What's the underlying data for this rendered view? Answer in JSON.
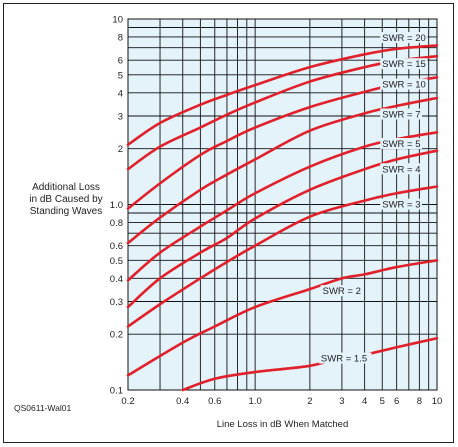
{
  "chart_data": {
    "type": "line",
    "xlabel": "Line Loss in dB When Matched",
    "ylabel_lines": [
      "Additional Loss",
      "in dB Caused by",
      "Standing Waves"
    ],
    "x_scale": "log",
    "y_scale": "log",
    "xlim": [
      0.2,
      10
    ],
    "ylim": [
      0.1,
      10
    ],
    "x_ticks": [
      0.2,
      0.4,
      0.6,
      1.0,
      2,
      3,
      4,
      5,
      6,
      8,
      10
    ],
    "x_tick_labels": [
      "0.2",
      "0.4",
      "0.6",
      "1.0",
      "2",
      "3",
      "4",
      "5",
      "6",
      "8",
      "10"
    ],
    "y_ticks": [
      0.1,
      0.2,
      0.3,
      0.4,
      0.5,
      0.6,
      0.8,
      1.0,
      2,
      3,
      4,
      5,
      6,
      8,
      10
    ],
    "y_tick_labels": [
      "0.1",
      "0.2",
      "0.3",
      "0.4",
      "0.5",
      "0.6",
      "0.8",
      "1.0",
      "2",
      "3",
      "4",
      "5",
      "6",
      "8",
      "10"
    ],
    "x_grid": [
      0.2,
      0.3,
      0.4,
      0.5,
      0.6,
      0.7,
      0.8,
      0.9,
      1.0,
      2,
      3,
      4,
      5,
      6,
      7,
      8,
      9,
      10
    ],
    "y_grid": [
      0.1,
      0.2,
      0.3,
      0.4,
      0.5,
      0.6,
      0.7,
      0.8,
      0.9,
      1.0,
      2,
      3,
      4,
      5,
      6,
      7,
      8,
      9,
      10
    ],
    "grid": true,
    "series": [
      {
        "name": "SWR = 20",
        "x": [
          0.2,
          0.3,
          0.5,
          0.7,
          1.0,
          2,
          4,
          6,
          10
        ],
        "y": [
          2.1,
          2.75,
          3.45,
          3.9,
          4.4,
          5.5,
          6.45,
          6.9,
          7.2
        ]
      },
      {
        "name": "SWR = 15",
        "x": [
          0.2,
          0.3,
          0.5,
          0.7,
          1.0,
          2,
          4,
          6,
          10
        ],
        "y": [
          1.55,
          2.05,
          2.6,
          3.05,
          3.55,
          4.6,
          5.5,
          5.95,
          6.3
        ]
      },
      {
        "name": "SWR = 10",
        "x": [
          0.2,
          0.3,
          0.5,
          0.7,
          1.0,
          2,
          4,
          6,
          10
        ],
        "y": [
          0.95,
          1.3,
          1.85,
          2.2,
          2.6,
          3.35,
          4.05,
          4.45,
          4.85
        ]
      },
      {
        "name": "SWR = 7",
        "x": [
          0.2,
          0.3,
          0.5,
          0.7,
          1.0,
          2,
          4,
          6,
          10
        ],
        "y": [
          0.62,
          0.85,
          1.2,
          1.45,
          1.75,
          2.5,
          3.1,
          3.4,
          3.75
        ]
      },
      {
        "name": "SWR = 5",
        "x": [
          0.2,
          0.3,
          0.5,
          0.7,
          1.0,
          2,
          4,
          6,
          10
        ],
        "y": [
          0.39,
          0.55,
          0.76,
          0.93,
          1.15,
          1.6,
          2.05,
          2.25,
          2.45
        ]
      },
      {
        "name": "SWR = 4",
        "x": [
          0.2,
          0.3,
          0.5,
          0.7,
          1.0,
          2,
          4,
          6,
          10
        ],
        "y": [
          0.28,
          0.4,
          0.55,
          0.66,
          0.84,
          1.2,
          1.55,
          1.75,
          1.95
        ]
      },
      {
        "name": "SWR = 3",
        "x": [
          0.2,
          0.3,
          0.5,
          0.7,
          1.0,
          2,
          4,
          6,
          10
        ],
        "y": [
          0.22,
          0.29,
          0.4,
          0.49,
          0.6,
          0.86,
          1.05,
          1.15,
          1.25
        ]
      },
      {
        "name": "SWR = 2",
        "x": [
          0.2,
          0.4,
          0.6,
          1.0,
          2,
          3,
          4,
          6,
          10
        ],
        "y": [
          0.12,
          0.18,
          0.22,
          0.28,
          0.35,
          0.4,
          0.42,
          0.46,
          0.5
        ]
      },
      {
        "name": "SWR = 1.5",
        "x": [
          0.4,
          0.6,
          1.0,
          2,
          3,
          4,
          6,
          10
        ],
        "y": [
          0.1,
          0.115,
          0.125,
          0.135,
          0.15,
          0.155,
          0.17,
          0.19
        ]
      }
    ],
    "curve_labels": [
      {
        "text": "SWR = 20",
        "x": 5.0,
        "y": 7.75
      },
      {
        "text": "SWR = 15",
        "x": 5.0,
        "y": 5.6
      },
      {
        "text": "SWR = 10",
        "x": 5.0,
        "y": 4.35
      },
      {
        "text": "SWR = 7",
        "x": 5.0,
        "y": 3.0
      },
      {
        "text": "SWR = 5",
        "x": 5.0,
        "y": 2.08
      },
      {
        "text": "SWR = 4",
        "x": 5.0,
        "y": 1.52
      },
      {
        "text": "SWR = 3",
        "x": 5.0,
        "y": 0.98
      },
      {
        "text": "SWR = 2",
        "x": 2.35,
        "y": 0.335
      },
      {
        "text": "SWR = 1.5",
        "x": 2.3,
        "y": 0.145
      }
    ],
    "colors": {
      "background": "#e4f2fa",
      "grid": "#111111",
      "curve": "#e0202a",
      "text": "#222222"
    }
  },
  "figure_id": "QS0611-Wal01"
}
